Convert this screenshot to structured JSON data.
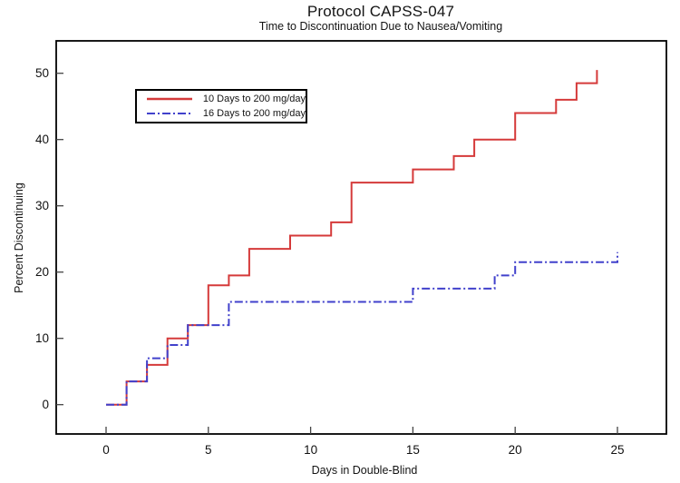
{
  "header": {
    "title": "Protocol CAPSS-047",
    "subtitle": "Time to Discontinuation Due to Nausea/Vomiting"
  },
  "chart_data": {
    "type": "line",
    "subtype": "step-survival",
    "title": "Protocol CAPSS-047",
    "subtitle": "Time to Discontinuation Due to Nausea/Vomiting",
    "xlabel": "Days in Double-Blind",
    "ylabel": "Percent Discontinuing",
    "xlim": [
      0,
      25
    ],
    "ylim": [
      0,
      50
    ],
    "xticks": [
      0,
      5,
      10,
      15,
      20,
      25
    ],
    "yticks": [
      0,
      10,
      20,
      30,
      40,
      50
    ],
    "grid": false,
    "legend_position": "upper-left",
    "series": [
      {
        "name": "10 Days to 200 mg/day",
        "color": "#d53a3a",
        "style": "solid",
        "dash": "",
        "points": [
          [
            0,
            0
          ],
          [
            1,
            0
          ],
          [
            1,
            3.5
          ],
          [
            2,
            3.5
          ],
          [
            2,
            6
          ],
          [
            3,
            6
          ],
          [
            3,
            10
          ],
          [
            4,
            10
          ],
          [
            4,
            12
          ],
          [
            5,
            12
          ],
          [
            5,
            18
          ],
          [
            6,
            18
          ],
          [
            6,
            19.5
          ],
          [
            7,
            19.5
          ],
          [
            7,
            23.5
          ],
          [
            9,
            23.5
          ],
          [
            9,
            25.5
          ],
          [
            11,
            25.5
          ],
          [
            11,
            27.5
          ],
          [
            12,
            27.5
          ],
          [
            12,
            33.5
          ],
          [
            15,
            33.5
          ],
          [
            15,
            35.5
          ],
          [
            17,
            35.5
          ],
          [
            17,
            37.5
          ],
          [
            18,
            37.5
          ],
          [
            18,
            40
          ],
          [
            20,
            40
          ],
          [
            20,
            44
          ],
          [
            22,
            44
          ],
          [
            22,
            46
          ],
          [
            23,
            46
          ],
          [
            23,
            48.5
          ],
          [
            24,
            48.5
          ],
          [
            24,
            50.5
          ]
        ]
      },
      {
        "name": "16 Days to 200 mg/day",
        "color": "#4141cc",
        "style": "dash-dot",
        "dash": "9 3 2 3",
        "points": [
          [
            0,
            0
          ],
          [
            1,
            0
          ],
          [
            1,
            3.5
          ],
          [
            2,
            3.5
          ],
          [
            2,
            7
          ],
          [
            3,
            7
          ],
          [
            3,
            9
          ],
          [
            4,
            9
          ],
          [
            4,
            12
          ],
          [
            6,
            12
          ],
          [
            6,
            15.5
          ],
          [
            15,
            15.5
          ],
          [
            15,
            17.5
          ],
          [
            19,
            17.5
          ],
          [
            19,
            19.5
          ],
          [
            20,
            19.5
          ],
          [
            20,
            21.5
          ],
          [
            25,
            21.5
          ],
          [
            25,
            23
          ]
        ]
      }
    ]
  }
}
